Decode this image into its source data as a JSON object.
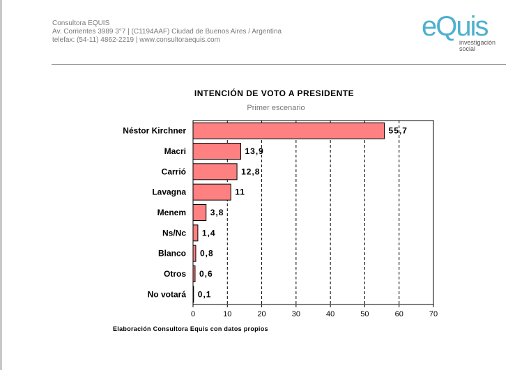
{
  "header": {
    "company": "Consultora EQUIS",
    "address": "Av. Corrientes 3989 3°7  |  (C1194AAF) Ciudad de Buenos Aires / Argentina",
    "phone": "telefax: (54-11) 4862-2219  |  www.consultoraequis.com"
  },
  "logo": {
    "word": "eQuis",
    "line1": "investigación",
    "line2": "social",
    "color": "#4db0cf"
  },
  "chart_data": {
    "type": "bar",
    "orientation": "horizontal",
    "title": "INTENCIÓN DE VOTO A PRESIDENTE",
    "subtitle": "Primer escenario",
    "categories": [
      "Néstor Kirchner",
      "Macri",
      "Carrió",
      "Lavagna",
      "Menem",
      "Ns/Nc",
      "Blanco",
      "Otros",
      "No votará"
    ],
    "values": [
      55.7,
      13.9,
      12.8,
      11,
      3.8,
      1.4,
      0.8,
      0.6,
      0.1
    ],
    "value_labels": [
      "55,7",
      "13,9",
      "12,8",
      "11",
      "3,8",
      "1,4",
      "0,8",
      "0,6",
      "0,1"
    ],
    "xlim": [
      0,
      70
    ],
    "xticks": [
      0,
      10,
      20,
      30,
      40,
      50,
      60,
      70
    ],
    "grid": "vertical dashed",
    "bar_color": "#ff8080",
    "source": "Elaboración Consultora Equis con datos propios"
  }
}
